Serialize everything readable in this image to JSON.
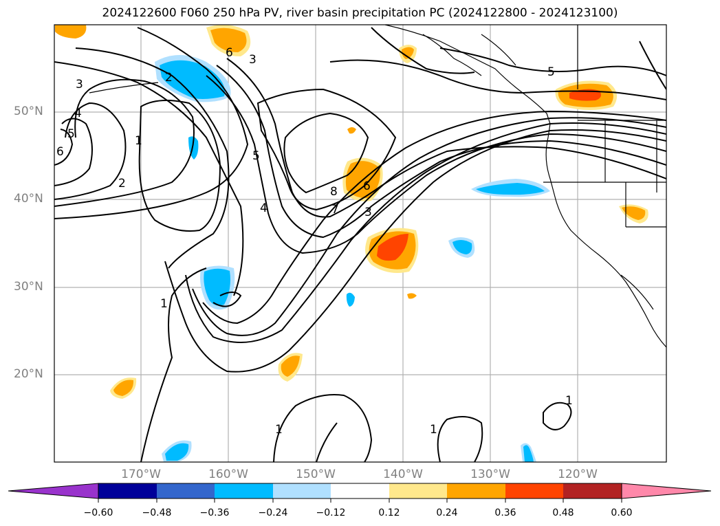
{
  "title": "2024122600 F060 250 hPa PV, river basin precipitation PC (2024122800 - 2024123100)",
  "lat_labels": [
    "50°N",
    "40°N",
    "30°N",
    "20°N"
  ],
  "lon_labels": [
    "170°W",
    "160°W",
    "150°W",
    "140°W",
    "130°W",
    "120°W"
  ],
  "colorbar": {
    "ticks": [
      "−0.60",
      "−0.48",
      "−0.36",
      "−0.24",
      "−0.12",
      "0.12",
      "0.24",
      "0.36",
      "0.48",
      "0.60"
    ],
    "colors": [
      "#9933cc",
      "#000099",
      "#3366cc",
      "#00bbff",
      "#b0e0ff",
      "#ffffff",
      "#ffe88c",
      "#ffa500",
      "#ff4400",
      "#b22222",
      "#ff88aa"
    ]
  },
  "contour_labels": [
    "3",
    "4",
    "5",
    "6",
    "1",
    "2",
    "5",
    "4",
    "8",
    "7",
    "6",
    "3",
    "1",
    "1",
    "1",
    "1",
    "5",
    "2",
    "3",
    "6"
  ]
}
